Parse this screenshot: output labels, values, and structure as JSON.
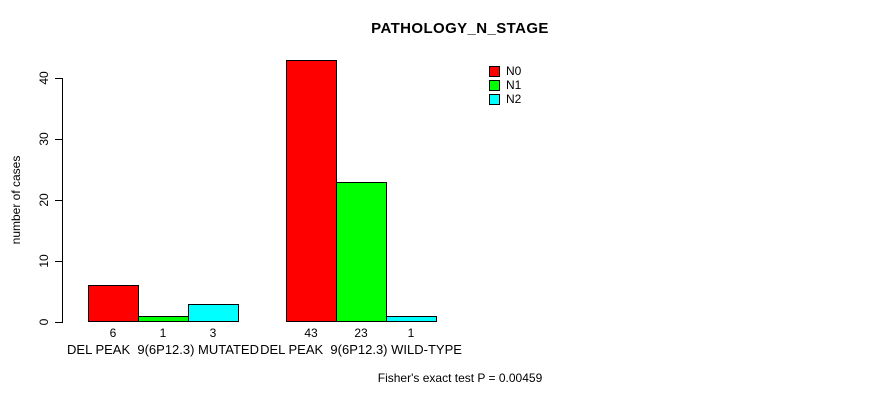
{
  "chart_data": {
    "type": "bar",
    "title": "PATHOLOGY_N_STAGE",
    "ylabel": "number of cases",
    "xlabel": "",
    "categories": [
      "DEL PEAK  9(6P12.3) MUTATED",
      "DEL PEAK  9(6P12.3) WILD-TYPE"
    ],
    "series": [
      {
        "name": "N0",
        "color": "#ff0000",
        "values": [
          6,
          43
        ]
      },
      {
        "name": "N1",
        "color": "#00ff00",
        "values": [
          1,
          23
        ]
      },
      {
        "name": "N2",
        "color": "#00ffff",
        "values": [
          3,
          1
        ]
      }
    ],
    "yticks": [
      0,
      10,
      20,
      30,
      40
    ],
    "ylim": [
      0,
      43
    ],
    "grid": false,
    "legend_position": "top-right",
    "bar_value_labels": [
      [
        6,
        1,
        3
      ],
      [
        43,
        23,
        1
      ]
    ],
    "annotation": "Fisher's exact test P = 0.00459"
  },
  "colors": {
    "background": "#ffffff",
    "axis": "#000000",
    "text": "#000000"
  }
}
